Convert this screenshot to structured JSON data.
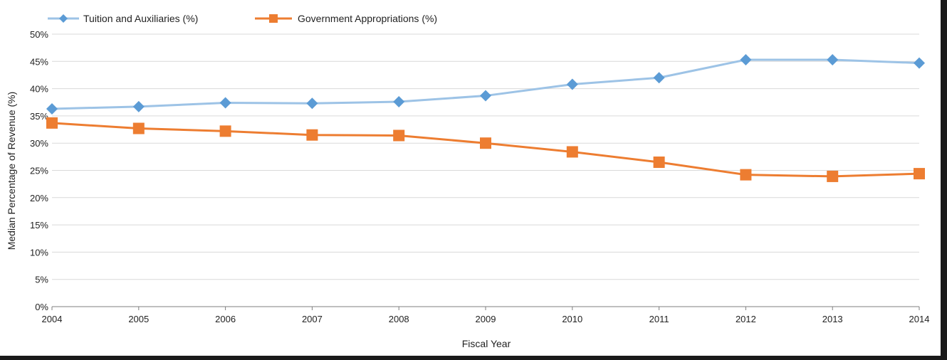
{
  "chart_data": {
    "type": "line",
    "x": [
      2004,
      2005,
      2006,
      2007,
      2008,
      2009,
      2010,
      2011,
      2012,
      2013,
      2014
    ],
    "series": [
      {
        "name": "Tuition and Auxiliaries (%)",
        "values": [
          36.3,
          36.7,
          37.4,
          37.3,
          37.6,
          38.7,
          40.8,
          42.0,
          45.3,
          45.3,
          44.7
        ],
        "color": "#9dc3e6",
        "marker_color": "#5b9bd5",
        "marker": "diamond"
      },
      {
        "name": "Government Appropriations (%)",
        "values": [
          33.7,
          32.7,
          32.2,
          31.5,
          31.4,
          30.0,
          28.4,
          26.5,
          24.2,
          23.9,
          24.4
        ],
        "color": "#ed7d31",
        "marker_color": "#ed7d31",
        "marker": "square"
      }
    ],
    "xlabel": "Fiscal Year",
    "ylabel": "Median Percentage of Revenue (%)",
    "ylim": [
      0,
      50
    ],
    "yticks": [
      "0%",
      "5%",
      "10%",
      "15%",
      "20%",
      "25%",
      "30%",
      "35%",
      "40%",
      "45%",
      "50%"
    ],
    "xticks": [
      "2004",
      "2005",
      "2006",
      "2007",
      "2008",
      "2009",
      "2010",
      "2011",
      "2012",
      "2013",
      "2014"
    ],
    "grid": true,
    "legend": "top-left"
  }
}
